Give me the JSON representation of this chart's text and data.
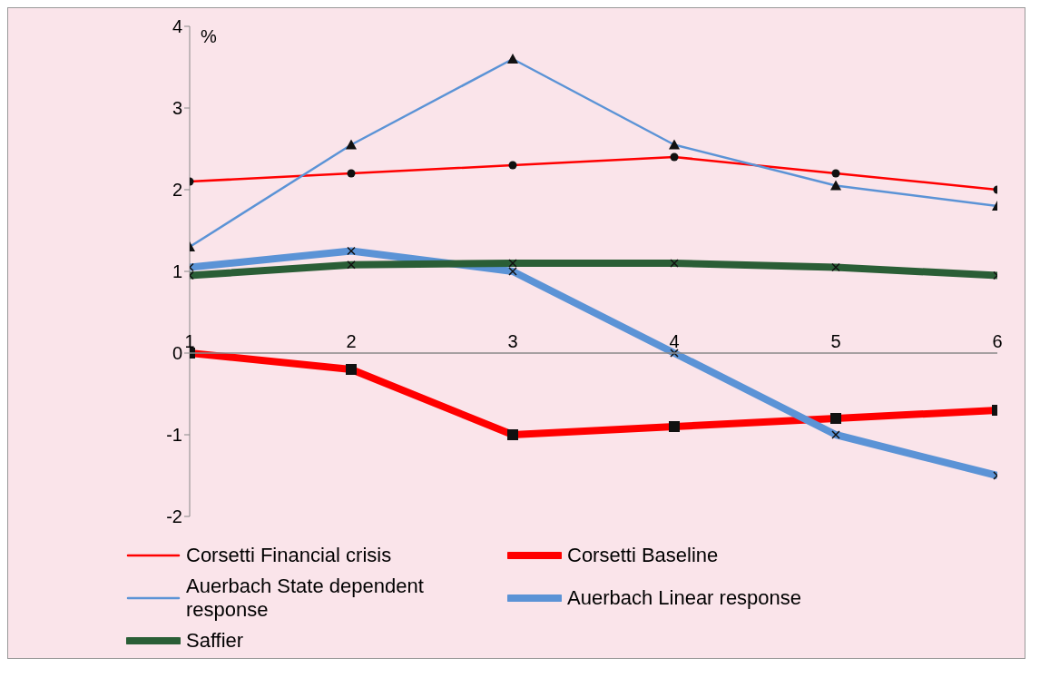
{
  "chart_data": {
    "type": "line",
    "ylabel": "%",
    "x": [
      1,
      2,
      3,
      4,
      5,
      6
    ],
    "xlim": [
      1,
      6
    ],
    "xticks": [
      1,
      2,
      3,
      4,
      5,
      6
    ],
    "ylim": [
      -2,
      4
    ],
    "yticks": [
      -2,
      -1,
      0,
      1,
      2,
      3,
      4
    ],
    "legend": "bottom",
    "series": [
      {
        "name": "Corsetti Financial crisis",
        "color": "#ff0000",
        "marker": "circle",
        "values": [
          2.1,
          2.2,
          2.3,
          2.4,
          2.2,
          2.0
        ]
      },
      {
        "name": "Corsetti Baseline",
        "color": "#ff0000",
        "marker": "square",
        "values": [
          0,
          -0.2,
          -1.0,
          -0.9,
          -0.8,
          -0.7
        ]
      },
      {
        "name": "Auerbach State dependent response",
        "color": "#5b93d6",
        "marker": "triangle",
        "values": [
          1.3,
          2.55,
          3.6,
          2.55,
          2.05,
          1.8
        ]
      },
      {
        "name": "Auerbach Linear response",
        "color": "#5b93d6",
        "marker": "cross",
        "values": [
          1.05,
          1.25,
          1.0,
          0,
          -1.0,
          -1.5
        ]
      },
      {
        "name": "Saffier",
        "color": "#2a5e36",
        "marker": "cross",
        "values": [
          0.95,
          1.08,
          1.1,
          1.1,
          1.05,
          0.95
        ]
      }
    ]
  }
}
